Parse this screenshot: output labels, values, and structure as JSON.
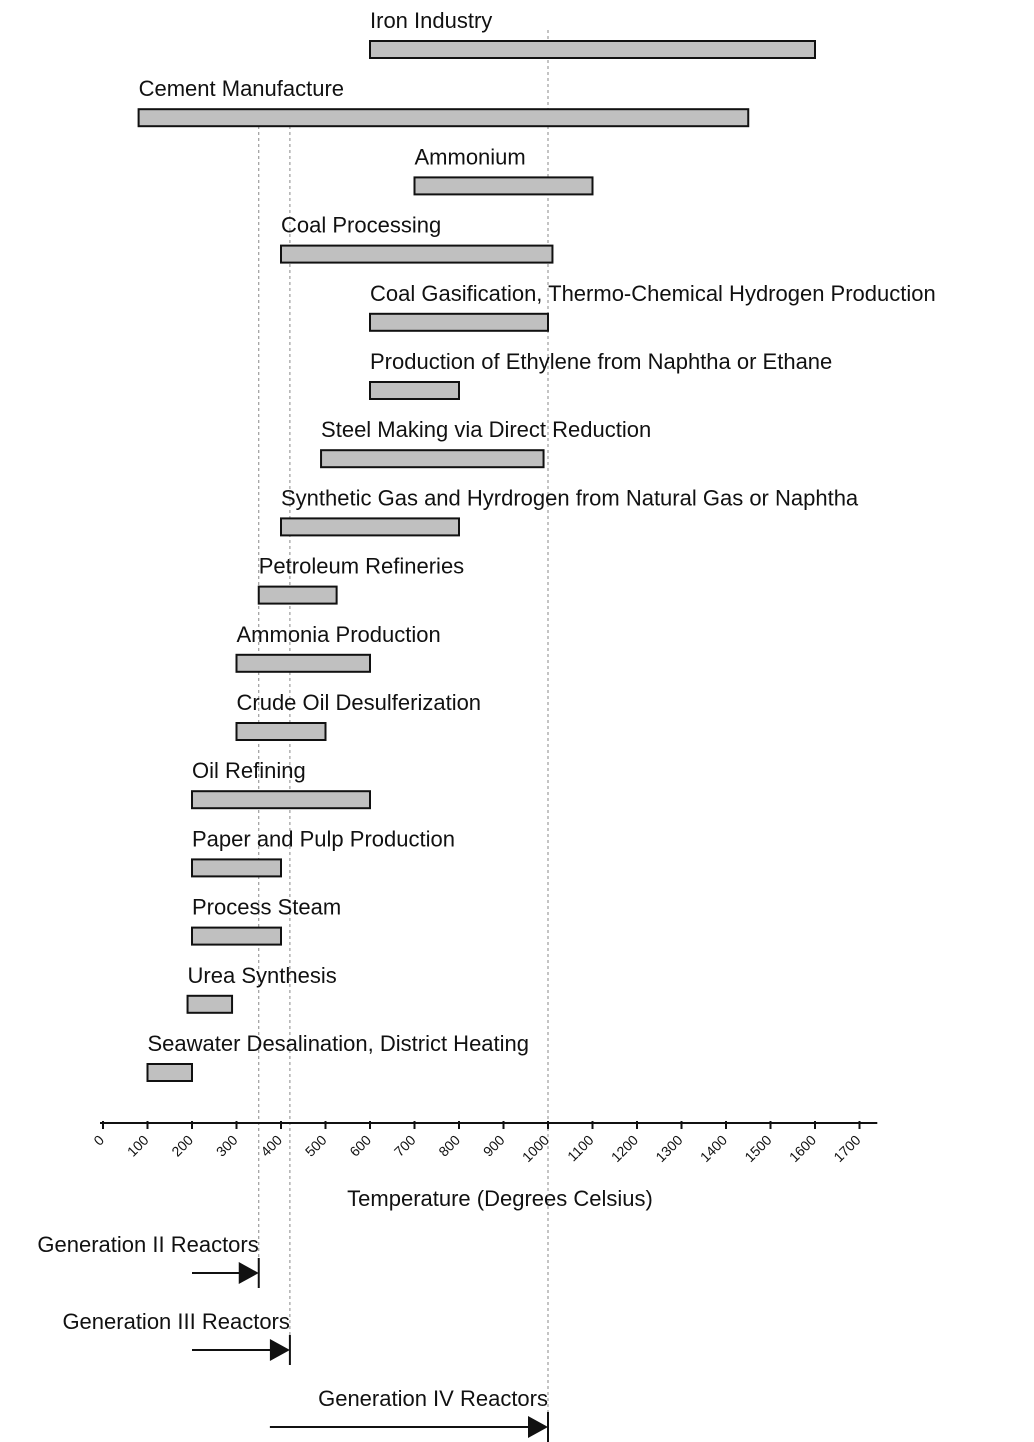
{
  "chart_data": {
    "type": "range_bar",
    "xlabel": "Temperature (Degrees Celsius)",
    "categories": [
      "Iron Industry",
      "Cement Manufacture",
      "Ammonium",
      "Coal Processing",
      "Coal Gasification, Thermo-Chemical Hydrogen Production",
      "Production of Ethylene from Naphtha or Ethane",
      "Steel Making via Direct Reduction",
      "Synthetic Gas and Hyrdrogen from Natural Gas or Naphtha",
      "Petroleum Refineries",
      "Ammonia Production",
      "Crude Oil Desulferization",
      "Oil Refining",
      "Paper and Pulp Production",
      "Process Steam",
      "Urea Synthesis",
      "Seawater Desalination, District Heating"
    ],
    "starts": [
      600,
      80,
      700,
      400,
      600,
      600,
      490,
      400,
      350,
      300,
      300,
      200,
      200,
      200,
      190,
      100
    ],
    "ends": [
      1600,
      1450,
      1100,
      1010,
      1000,
      800,
      990,
      800,
      525,
      600,
      500,
      600,
      400,
      400,
      290,
      200
    ],
    "color": "#c0c0c0",
    "xlim": [
      0,
      1740
    ],
    "xticks": [
      0,
      100,
      200,
      300,
      400,
      500,
      600,
      700,
      800,
      900,
      1000,
      1100,
      1200,
      1300,
      1400,
      1500,
      1600,
      1700
    ],
    "reactors": [
      {
        "label": "Generation II Reactors",
        "start": 200,
        "end": 350
      },
      {
        "label": "Generation III Reactors",
        "start": 200,
        "end": 420
      },
      {
        "label": "Generation IV Reactors",
        "start": 375,
        "end": 1000
      }
    ]
  }
}
